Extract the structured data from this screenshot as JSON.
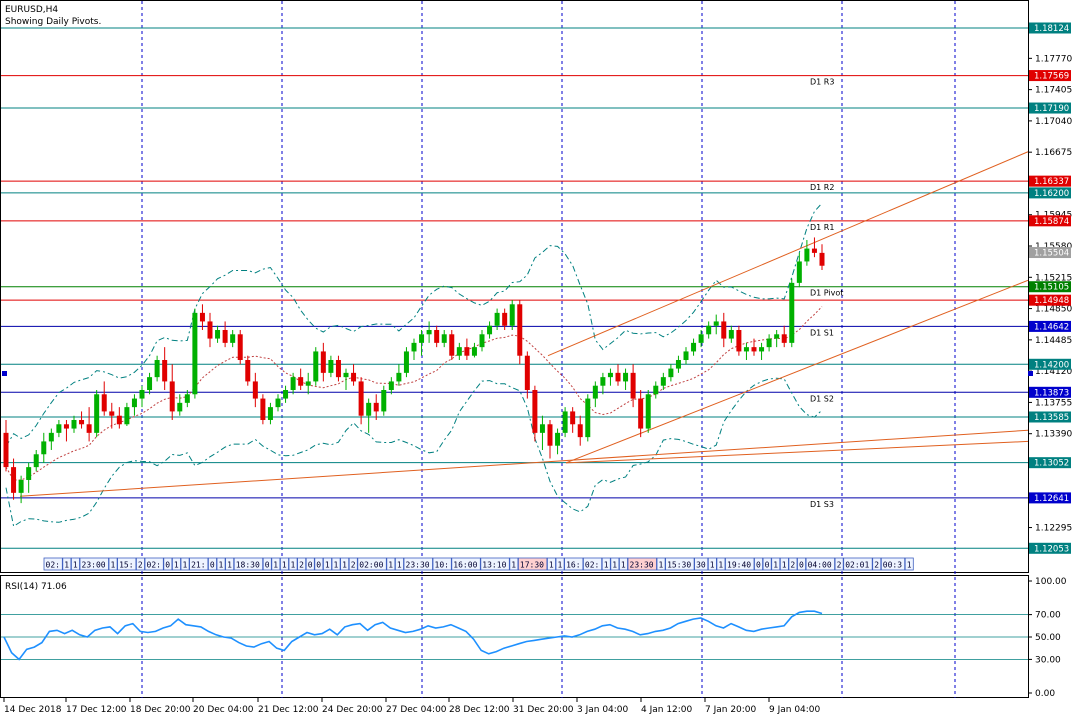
{
  "window": {
    "title": "EURUSD,H4",
    "subtitle": "Showing Daily Pivots."
  },
  "colors": {
    "pivot_red": "#e00000",
    "pivot_green": "#008000",
    "channel": "#e06020",
    "grid": "#0000cc",
    "bull": "#00b000",
    "bear": "#e00000",
    "bands": "#008080",
    "rsi": "#1e90ff",
    "level_teal": "#008080"
  },
  "price_axis": {
    "ticks": [
      "1.17770",
      "1.17405",
      "1.17040",
      "1.16675",
      "1.15945",
      "1.15580",
      "1.15215",
      "1.14850",
      "1.14485",
      "1.14120",
      "1.13755",
      "1.13390",
      "1.12295"
    ]
  },
  "level_tags": [
    {
      "value": 1.18124,
      "label": "1.18124",
      "kind": "teal"
    },
    {
      "value": 1.17569,
      "label": "1.17569",
      "kind": "red"
    },
    {
      "value": 1.1719,
      "label": "1.17190",
      "kind": "teal"
    },
    {
      "value": 1.16337,
      "label": "1.16337",
      "kind": "red"
    },
    {
      "value": 1.162,
      "label": "1.16200",
      "kind": "teal"
    },
    {
      "value": 1.15874,
      "label": "1.15874",
      "kind": "red"
    },
    {
      "value": 1.15504,
      "label": "1.15504",
      "kind": "grey"
    },
    {
      "value": 1.15105,
      "label": "1.15105",
      "kind": "green"
    },
    {
      "value": 1.14948,
      "label": "1.14948",
      "kind": "red"
    },
    {
      "value": 1.14642,
      "label": "1.14642",
      "kind": "blue"
    },
    {
      "value": 1.142,
      "label": "1.14200",
      "kind": "teal"
    },
    {
      "value": 1.13873,
      "label": "1.13873",
      "kind": "blue"
    },
    {
      "value": 1.13585,
      "label": "1.13585",
      "kind": "teal"
    },
    {
      "value": 1.13052,
      "label": "1.13052",
      "kind": "teal"
    },
    {
      "value": 1.12641,
      "label": "1.12641",
      "kind": "blue"
    },
    {
      "value": 1.12053,
      "label": "1.12053",
      "kind": "teal"
    }
  ],
  "pivots": [
    {
      "name": "D1  R3",
      "value": 1.17569
    },
    {
      "name": "D1  R2",
      "value": 1.16337
    },
    {
      "name": "D1  R1",
      "value": 1.15874
    },
    {
      "name": "D1  Pivot",
      "value": 1.15105
    },
    {
      "name": "D1  S1",
      "value": 1.14642
    },
    {
      "name": "D1  S2",
      "value": 1.13873
    },
    {
      "name": "D1  S3",
      "value": 1.12641
    }
  ],
  "time_axis": {
    "labels": [
      "14 Dec 2018",
      "17 Dec 12:00",
      "18 Dec 20:00",
      "20 Dec 04:00",
      "21 Dec 12:00",
      "24 Dec 20:00",
      "27 Dec 04:00",
      "28 Dec 12:00",
      "31 Dec 20:00",
      "3 Jan 04:00",
      "4 Jan 12:00",
      "7 Jan 20:00",
      "9 Jan 04:00"
    ]
  },
  "event_strip": {
    "items": [
      "02:",
      "1",
      "1",
      "23:00",
      "1",
      "15:",
      "2",
      "02:",
      "0",
      "1",
      "1",
      "21:",
      "0",
      "1",
      "1",
      "18:30",
      "0",
      "1",
      "1",
      "1",
      "2",
      "0",
      "0",
      "1",
      "1",
      "1",
      "2",
      "02:00",
      "1",
      "1",
      "23:30",
      "10:",
      "16:00",
      "13:10",
      "1",
      "17:30",
      "1",
      "1",
      "16:",
      "02:",
      "1",
      "1",
      "1",
      "23:30",
      "1",
      "15:30",
      "30",
      "1",
      "1",
      "19:40",
      "0",
      "0",
      "1",
      "1",
      "2",
      "0",
      "04:00",
      "2",
      "02:01",
      "2",
      "00:3",
      "1",
      "22:30"
    ]
  },
  "rsi": {
    "label": "RSI(14) 71.06",
    "ticks": [
      "100.00",
      "70.00",
      "50.00",
      "30.00",
      "0.00"
    ],
    "levels": [
      70,
      50,
      30
    ]
  },
  "chart_data": {
    "type": "candlestick",
    "symbol": "EURUSD",
    "timeframe": "H4",
    "ylim": [
      1.117,
      1.184
    ],
    "candles": [
      [
        1.134,
        1.1355,
        1.1295,
        1.13
      ],
      [
        1.13,
        1.131,
        1.1262,
        1.127
      ],
      [
        1.127,
        1.129,
        1.1258,
        1.1285
      ],
      [
        1.1285,
        1.1305,
        1.127,
        1.13
      ],
      [
        1.13,
        1.132,
        1.1295,
        1.1315
      ],
      [
        1.1315,
        1.134,
        1.1305,
        1.133
      ],
      [
        1.133,
        1.1345,
        1.132,
        1.134
      ],
      [
        1.134,
        1.1355,
        1.1335,
        1.135
      ],
      [
        1.135,
        1.1355,
        1.133,
        1.1345
      ],
      [
        1.1345,
        1.136,
        1.134,
        1.1355
      ],
      [
        1.1355,
        1.1365,
        1.1345,
        1.135
      ],
      [
        1.135,
        1.137,
        1.133,
        1.134
      ],
      [
        1.134,
        1.139,
        1.1335,
        1.1385
      ],
      [
        1.1385,
        1.14,
        1.136,
        1.1365
      ],
      [
        1.1365,
        1.1375,
        1.1345,
        1.136
      ],
      [
        1.136,
        1.137,
        1.1345,
        1.135
      ],
      [
        1.135,
        1.1375,
        1.1348,
        1.137
      ],
      [
        1.137,
        1.1385,
        1.136,
        1.138
      ],
      [
        1.138,
        1.1395,
        1.137,
        1.139
      ],
      [
        1.139,
        1.141,
        1.1385,
        1.1405
      ],
      [
        1.1405,
        1.143,
        1.14,
        1.1425
      ],
      [
        1.1425,
        1.144,
        1.139,
        1.14
      ],
      [
        1.14,
        1.142,
        1.1355,
        1.1365
      ],
      [
        1.1365,
        1.1385,
        1.136,
        1.1375
      ],
      [
        1.1375,
        1.139,
        1.137,
        1.1385
      ],
      [
        1.1385,
        1.1485,
        1.138,
        1.148
      ],
      [
        1.148,
        1.149,
        1.146,
        1.147
      ],
      [
        1.147,
        1.148,
        1.144,
        1.145
      ],
      [
        1.145,
        1.1465,
        1.1445,
        1.146
      ],
      [
        1.146,
        1.147,
        1.144,
        1.1445
      ],
      [
        1.1445,
        1.146,
        1.144,
        1.1455
      ],
      [
        1.1455,
        1.146,
        1.142,
        1.1425
      ],
      [
        1.1425,
        1.143,
        1.1395,
        1.14
      ],
      [
        1.14,
        1.141,
        1.137,
        1.138
      ],
      [
        1.138,
        1.1385,
        1.135,
        1.1355
      ],
      [
        1.1355,
        1.1375,
        1.135,
        1.137
      ],
      [
        1.137,
        1.1385,
        1.1365,
        1.138
      ],
      [
        1.138,
        1.1395,
        1.1375,
        1.139
      ],
      [
        1.139,
        1.141,
        1.1385,
        1.1405
      ],
      [
        1.1405,
        1.1415,
        1.139,
        1.1395
      ],
      [
        1.1395,
        1.141,
        1.1385,
        1.14
      ],
      [
        1.14,
        1.144,
        1.1395,
        1.1435
      ],
      [
        1.1435,
        1.1445,
        1.14,
        1.141
      ],
      [
        1.141,
        1.143,
        1.1405,
        1.1425
      ],
      [
        1.1425,
        1.143,
        1.14,
        1.1405
      ],
      [
        1.1405,
        1.1415,
        1.139,
        1.141
      ],
      [
        1.141,
        1.142,
        1.1395,
        1.14
      ],
      [
        1.14,
        1.1405,
        1.135,
        1.136
      ],
      [
        1.136,
        1.138,
        1.134,
        1.1375
      ],
      [
        1.1375,
        1.1385,
        1.1355,
        1.1365
      ],
      [
        1.1365,
        1.1395,
        1.136,
        1.139
      ],
      [
        1.139,
        1.1405,
        1.1385,
        1.14
      ],
      [
        1.14,
        1.142,
        1.1395,
        1.141
      ],
      [
        1.141,
        1.144,
        1.1405,
        1.1435
      ],
      [
        1.1435,
        1.145,
        1.1425,
        1.1445
      ],
      [
        1.1445,
        1.146,
        1.143,
        1.1455
      ],
      [
        1.1455,
        1.147,
        1.1445,
        1.146
      ],
      [
        1.146,
        1.1465,
        1.144,
        1.1445
      ],
      [
        1.1445,
        1.146,
        1.144,
        1.1455
      ],
      [
        1.1455,
        1.146,
        1.1425,
        1.143
      ],
      [
        1.143,
        1.1445,
        1.1425,
        1.144
      ],
      [
        1.144,
        1.145,
        1.1425,
        1.143
      ],
      [
        1.143,
        1.1445,
        1.1428,
        1.144
      ],
      [
        1.144,
        1.146,
        1.1435,
        1.1455
      ],
      [
        1.1455,
        1.147,
        1.145,
        1.1465
      ],
      [
        1.1465,
        1.1485,
        1.146,
        1.148
      ],
      [
        1.148,
        1.1485,
        1.146,
        1.1465
      ],
      [
        1.1465,
        1.1495,
        1.146,
        1.149
      ],
      [
        1.149,
        1.1495,
        1.142,
        1.143
      ],
      [
        1.143,
        1.1435,
        1.138,
        1.139
      ],
      [
        1.139,
        1.1395,
        1.133,
        1.134
      ],
      [
        1.134,
        1.136,
        1.132,
        1.135
      ],
      [
        1.135,
        1.1355,
        1.131,
        1.1325
      ],
      [
        1.1325,
        1.1345,
        1.1315,
        1.134
      ],
      [
        1.134,
        1.137,
        1.1335,
        1.1365
      ],
      [
        1.1365,
        1.137,
        1.134,
        1.135
      ],
      [
        1.135,
        1.136,
        1.1325,
        1.1335
      ],
      [
        1.1335,
        1.1385,
        1.133,
        1.138
      ],
      [
        1.138,
        1.14,
        1.137,
        1.1395
      ],
      [
        1.1395,
        1.141,
        1.1385,
        1.1405
      ],
      [
        1.1405,
        1.1415,
        1.1395,
        1.141
      ],
      [
        1.141,
        1.142,
        1.1395,
        1.14
      ],
      [
        1.14,
        1.1415,
        1.139,
        1.141
      ],
      [
        1.141,
        1.142,
        1.137,
        1.138
      ],
      [
        1.138,
        1.139,
        1.1335,
        1.1345
      ],
      [
        1.1345,
        1.139,
        1.134,
        1.1385
      ],
      [
        1.1385,
        1.14,
        1.138,
        1.1395
      ],
      [
        1.1395,
        1.141,
        1.139,
        1.1405
      ],
      [
        1.1405,
        1.142,
        1.14,
        1.1415
      ],
      [
        1.1415,
        1.143,
        1.141,
        1.1425
      ],
      [
        1.1425,
        1.144,
        1.142,
        1.1435
      ],
      [
        1.1435,
        1.145,
        1.143,
        1.1445
      ],
      [
        1.1445,
        1.146,
        1.144,
        1.1455
      ],
      [
        1.1455,
        1.147,
        1.145,
        1.1465
      ],
      [
        1.1465,
        1.1478,
        1.1455,
        1.147
      ],
      [
        1.147,
        1.148,
        1.144,
        1.145
      ],
      [
        1.145,
        1.1465,
        1.1445,
        1.146
      ],
      [
        1.146,
        1.1465,
        1.143,
        1.1435
      ],
      [
        1.1435,
        1.1445,
        1.1425,
        1.144
      ],
      [
        1.144,
        1.145,
        1.143,
        1.1435
      ],
      [
        1.1435,
        1.1445,
        1.1425,
        1.144
      ],
      [
        1.144,
        1.1455,
        1.1435,
        1.145
      ],
      [
        1.145,
        1.146,
        1.144,
        1.1455
      ],
      [
        1.1455,
        1.1465,
        1.144,
        1.1445
      ],
      [
        1.1445,
        1.152,
        1.144,
        1.1515
      ],
      [
        1.1515,
        1.155,
        1.151,
        1.154
      ],
      [
        1.154,
        1.1565,
        1.1535,
        1.1555
      ],
      [
        1.1555,
        1.1568,
        1.1545,
        1.155
      ],
      [
        1.155,
        1.156,
        1.153,
        1.1535
      ]
    ],
    "channel_lines": [
      {
        "from": [
          0.0,
          1.1265
        ],
        "to": [
          1.0,
          1.1345
        ]
      },
      {
        "from": [
          0.526,
          1.1305
        ],
        "to": [
          1.0,
          1.1515
        ]
      },
      {
        "from": [
          0.526,
          1.144
        ],
        "to": [
          1.0,
          1.1668
        ]
      },
      {
        "from": [
          0.526,
          1.1305
        ],
        "to": [
          1.0,
          1.1345
        ]
      }
    ]
  }
}
